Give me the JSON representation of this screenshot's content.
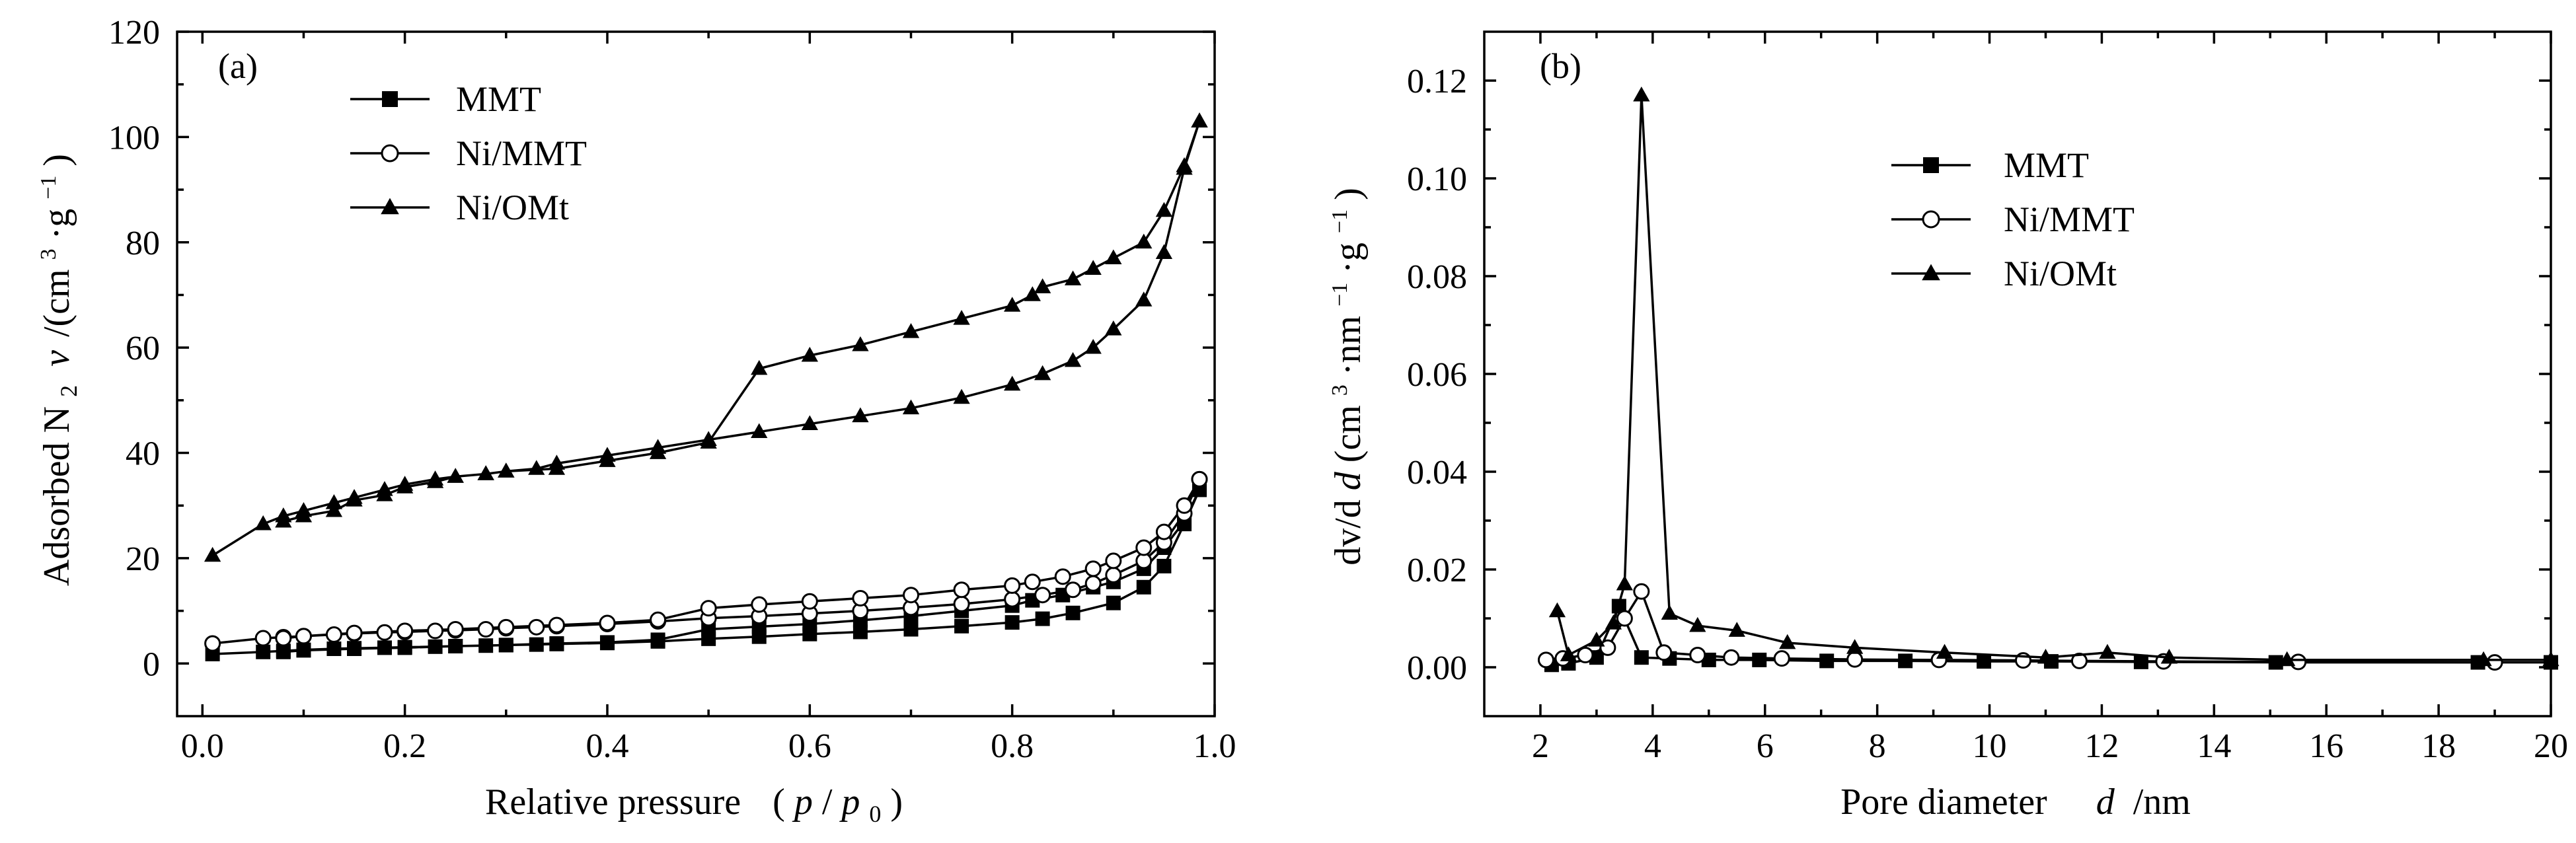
{
  "chart_data": [
    {
      "panel": "(a)",
      "type": "line",
      "xlabel_parts": [
        "Relative pressure",
        "(",
        "p",
        "/",
        "p",
        "0",
        ")"
      ],
      "ylabel_parts": [
        "Adsorbed N",
        "2",
        "v",
        "/(cm",
        "3",
        "·g",
        "−1",
        ")"
      ],
      "xlim": [
        -0.025,
        1.0
      ],
      "ylim": [
        -10,
        120
      ],
      "x_ticks": [
        0.0,
        0.2,
        0.4,
        0.6,
        0.8,
        1.0
      ],
      "x_tick_labels": [
        "0.0",
        "0.2",
        "0.4",
        "0.6",
        "0.8",
        "1.0"
      ],
      "y_ticks": [
        0,
        20,
        40,
        60,
        80,
        100,
        120
      ],
      "y_tick_labels": [
        "0",
        "20",
        "40",
        "60",
        "80",
        "100",
        "120"
      ],
      "legend_position": "top-left",
      "series": [
        {
          "name": "MMT",
          "marker": "square",
          "x": [
            0.01,
            0.06,
            0.08,
            0.1,
            0.13,
            0.15,
            0.18,
            0.2,
            0.23,
            0.25,
            0.28,
            0.3,
            0.33,
            0.35,
            0.4,
            0.45,
            0.5,
            0.55,
            0.6,
            0.65,
            0.7,
            0.75,
            0.8,
            0.83,
            0.86,
            0.9,
            0.93,
            0.95,
            0.97,
            0.985,
            0.985,
            0.97,
            0.95,
            0.93,
            0.9,
            0.88,
            0.85,
            0.82,
            0.8,
            0.75,
            0.7,
            0.65,
            0.6,
            0.55,
            0.5,
            0.45,
            0.4,
            0.35,
            0.3,
            0.25,
            0.2,
            0.15,
            0.1,
            0.08
          ],
          "y": [
            1.8,
            2.2,
            2.4,
            2.6,
            2.8,
            2.9,
            3.0,
            3.1,
            3.2,
            3.3,
            3.4,
            3.5,
            3.6,
            3.7,
            3.9,
            4.2,
            4.7,
            5.1,
            5.6,
            6.0,
            6.5,
            7.1,
            7.8,
            8.5,
            9.6,
            11.5,
            14.5,
            18.5,
            26.5,
            33.0,
            33.0,
            27.0,
            22.0,
            18.0,
            15.5,
            14.5,
            13.0,
            12.0,
            11.0,
            10.0,
            9.0,
            8.2,
            7.5,
            7.0,
            6.5,
            4.5,
            4.0,
            3.8,
            3.5,
            3.3,
            3.0,
            2.8,
            2.5,
            2.2
          ]
        },
        {
          "name": "Ni/MMT",
          "marker": "circle",
          "x": [
            0.01,
            0.06,
            0.08,
            0.1,
            0.13,
            0.15,
            0.18,
            0.2,
            0.23,
            0.25,
            0.28,
            0.3,
            0.33,
            0.35,
            0.4,
            0.45,
            0.5,
            0.55,
            0.6,
            0.65,
            0.7,
            0.75,
            0.8,
            0.83,
            0.86,
            0.88,
            0.9,
            0.93,
            0.95,
            0.97,
            0.985,
            0.985,
            0.97,
            0.95,
            0.93,
            0.9,
            0.88,
            0.85,
            0.82,
            0.8,
            0.75,
            0.7,
            0.65,
            0.6,
            0.55,
            0.5,
            0.45,
            0.4,
            0.35,
            0.3,
            0.25,
            0.2,
            0.15,
            0.1,
            0.08
          ],
          "y": [
            3.8,
            4.8,
            5.0,
            5.2,
            5.5,
            5.7,
            5.9,
            6.0,
            6.2,
            6.3,
            6.5,
            6.7,
            6.9,
            7.1,
            7.5,
            8.0,
            8.6,
            9.0,
            9.5,
            10.0,
            10.6,
            11.3,
            12.2,
            13.0,
            14.0,
            15.2,
            16.8,
            19.5,
            23.0,
            28.5,
            35.0,
            35.0,
            30.0,
            25.0,
            22.0,
            19.5,
            18.0,
            16.5,
            15.5,
            14.8,
            14.0,
            13.0,
            12.4,
            11.8,
            11.2,
            10.5,
            8.3,
            7.7,
            7.3,
            6.9,
            6.5,
            6.2,
            5.8,
            5.2,
            4.8
          ]
        },
        {
          "name": "Ni/OMt",
          "marker": "triangle",
          "x": [
            0.01,
            0.06,
            0.08,
            0.1,
            0.13,
            0.15,
            0.18,
            0.2,
            0.23,
            0.25,
            0.28,
            0.3,
            0.33,
            0.35,
            0.4,
            0.45,
            0.5,
            0.55,
            0.6,
            0.65,
            0.7,
            0.75,
            0.8,
            0.83,
            0.86,
            0.88,
            0.9,
            0.93,
            0.95,
            0.97,
            0.985,
            0.985,
            0.97,
            0.95,
            0.93,
            0.9,
            0.88,
            0.86,
            0.83,
            0.82,
            0.8,
            0.75,
            0.7,
            0.65,
            0.6,
            0.55,
            0.5,
            0.45,
            0.4,
            0.35,
            0.3,
            0.28,
            0.25,
            0.23,
            0.2,
            0.18,
            0.15,
            0.13,
            0.1,
            0.08
          ],
          "y": [
            20.5,
            26.5,
            28.0,
            29.0,
            30.5,
            31.5,
            33.0,
            34.0,
            35.0,
            35.5,
            36.0,
            36.5,
            37.0,
            38.0,
            39.5,
            41.0,
            42.5,
            44.0,
            45.5,
            47.0,
            48.5,
            50.5,
            53.0,
            55.0,
            57.5,
            60.0,
            63.5,
            69.0,
            78.0,
            94.0,
            103.0,
            103.0,
            94.5,
            86.0,
            80.0,
            77.0,
            75.0,
            73.0,
            71.5,
            70.0,
            68.0,
            65.5,
            63.0,
            60.5,
            58.5,
            56.0,
            42.0,
            40.0,
            38.5,
            37.0,
            36.5,
            36.0,
            35.5,
            34.5,
            33.5,
            32.0,
            31.0,
            29.0,
            28.0,
            27.0
          ]
        }
      ]
    },
    {
      "panel": "(b)",
      "type": "line",
      "xlabel_parts": [
        "Pore diameter",
        "d",
        "/nm"
      ],
      "ylabel_parts": [
        "dv/d",
        "d",
        " (cm",
        "3",
        "·nm",
        "−1",
        "·g",
        "−1",
        ")"
      ],
      "xlim": [
        1,
        20
      ],
      "ylim": [
        -0.01,
        0.13
      ],
      "x_ticks": [
        2,
        4,
        6,
        8,
        10,
        12,
        14,
        16,
        18,
        20
      ],
      "x_tick_labels": [
        "2",
        "4",
        "6",
        "8",
        "10",
        "12",
        "14",
        "16",
        "18",
        "20"
      ],
      "y_ticks": [
        0.0,
        0.02,
        0.04,
        0.06,
        0.08,
        0.1,
        0.12
      ],
      "y_tick_labels": [
        "0.00",
        "0.02",
        "0.04",
        "0.06",
        "0.08",
        "0.10",
        "0.12"
      ],
      "legend_position": "top-center",
      "series": [
        {
          "name": "MMT",
          "marker": "square",
          "x": [
            2.2,
            2.5,
            3.0,
            3.4,
            3.8,
            4.3,
            5.0,
            5.9,
            7.1,
            8.5,
            9.9,
            11.1,
            12.7,
            15.1,
            18.7,
            20.0
          ],
          "y": [
            0.0005,
            0.0008,
            0.002,
            0.0125,
            0.002,
            0.0018,
            0.0015,
            0.0015,
            0.0013,
            0.0013,
            0.0012,
            0.0012,
            0.0011,
            0.001,
            0.001,
            0.001
          ]
        },
        {
          "name": "Ni/MMT",
          "marker": "circle",
          "x": [
            2.1,
            2.4,
            2.8,
            3.2,
            3.5,
            3.8,
            4.2,
            4.8,
            5.4,
            6.3,
            7.6,
            9.1,
            10.6,
            11.6,
            13.1,
            15.5,
            19.0
          ],
          "y": [
            0.0015,
            0.0018,
            0.0025,
            0.004,
            0.01,
            0.0155,
            0.003,
            0.0025,
            0.002,
            0.0018,
            0.0016,
            0.0015,
            0.0014,
            0.0013,
            0.0012,
            0.0011,
            0.001
          ]
        },
        {
          "name": "Ni/OMt",
          "marker": "triangle",
          "x": [
            2.3,
            2.5,
            3.0,
            3.3,
            3.5,
            3.8,
            4.3,
            4.8,
            5.5,
            6.4,
            7.6,
            9.2,
            11.0,
            12.1,
            13.2,
            15.3,
            18.8,
            20.0
          ],
          "y": [
            0.0115,
            0.0025,
            0.0055,
            0.009,
            0.017,
            0.117,
            0.011,
            0.0085,
            0.0075,
            0.005,
            0.004,
            0.003,
            0.002,
            0.003,
            0.002,
            0.0015,
            0.0015,
            0.0015
          ]
        }
      ]
    }
  ]
}
